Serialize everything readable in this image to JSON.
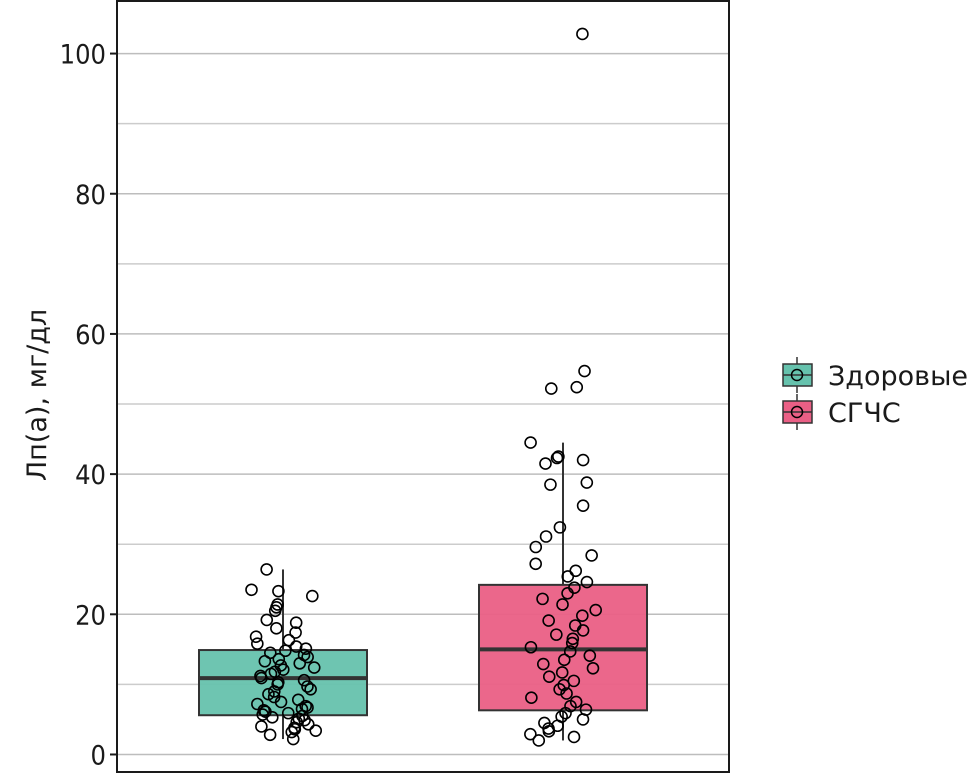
{
  "chart_data": {
    "type": "box",
    "ylabel": "Лп(а), мг/дл",
    "ylim": [
      -2.5,
      107.5
    ],
    "yticks": [
      0,
      20,
      40,
      60,
      80,
      100
    ],
    "grid": true,
    "legend_position": "right",
    "colors": {
      "Здоровые": "#66c2ad",
      "СГЧС": "#ea5f85",
      "outline": "#333333",
      "points": "#000000"
    },
    "series": [
      {
        "name": "Здоровые",
        "box": {
          "q1": 5.6,
          "median": 10.9,
          "q3": 14.9,
          "whisker_low": 2.2,
          "whisker_high": 26.4
        },
        "points": [
          2.2,
          2.8,
          3.2,
          3.4,
          3.6,
          3.8,
          4.0,
          4.3,
          4.6,
          4.9,
          5.1,
          5.3,
          5.5,
          5.7,
          5.9,
          6.1,
          6.3,
          6.5,
          6.7,
          6.9,
          7.2,
          7.5,
          7.8,
          8.2,
          8.6,
          9.0,
          9.3,
          9.7,
          10.0,
          10.3,
          10.6,
          10.9,
          11.2,
          11.5,
          11.8,
          12.1,
          12.4,
          12.7,
          13.0,
          13.3,
          13.6,
          13.9,
          14.2,
          14.5,
          14.8,
          15.1,
          15.4,
          15.8,
          16.3,
          16.8,
          17.4,
          18.0,
          18.8,
          19.2,
          20.5,
          21.0,
          21.4,
          22.6,
          23.3,
          23.5,
          26.4
        ]
      },
      {
        "name": "СГЧС",
        "box": {
          "q1": 6.3,
          "median": 15.0,
          "q3": 24.2,
          "whisker_low": 2.0,
          "whisker_high": 44.5
        },
        "points": [
          2.0,
          2.5,
          2.9,
          3.3,
          3.7,
          4.1,
          4.5,
          5.0,
          5.4,
          5.9,
          6.4,
          6.9,
          7.5,
          8.1,
          8.7,
          9.3,
          9.9,
          10.5,
          11.1,
          11.7,
          12.3,
          12.9,
          13.5,
          14.1,
          14.7,
          15.3,
          15.9,
          16.5,
          17.1,
          17.7,
          18.4,
          19.1,
          19.8,
          20.6,
          21.4,
          22.2,
          23.0,
          23.8,
          24.6,
          25.4,
          26.2,
          27.2,
          28.4,
          29.6,
          31.1,
          32.4,
          35.5,
          38.5,
          38.8,
          41.5,
          42.0,
          42.3,
          42.5,
          44.5,
          52.2,
          52.4,
          54.7,
          102.8
        ]
      }
    ]
  }
}
